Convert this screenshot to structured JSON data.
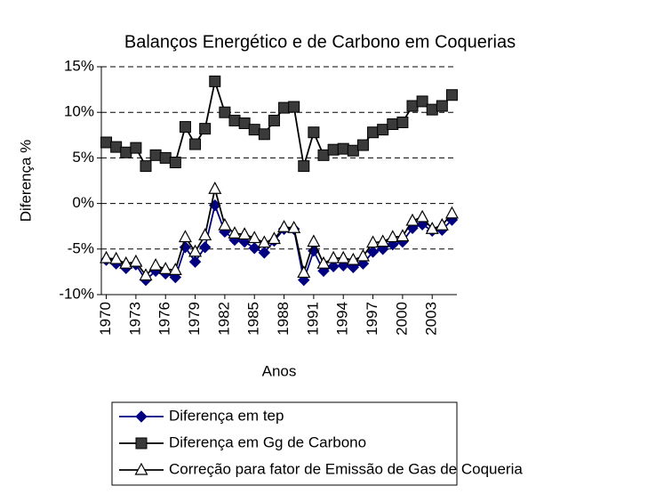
{
  "chart_data": {
    "type": "line",
    "title": "Balanços Energético e de Carbono em Coquerias",
    "x_label": "Anos",
    "y_label": "Diferença %",
    "x": [
      1970,
      1971,
      1972,
      1973,
      1974,
      1975,
      1976,
      1977,
      1978,
      1979,
      1980,
      1981,
      1982,
      1983,
      1984,
      1985,
      1986,
      1987,
      1988,
      1989,
      1990,
      1991,
      1992,
      1993,
      1994,
      1995,
      1996,
      1997,
      1998,
      1999,
      2000,
      2001,
      2002,
      2003,
      2004,
      2005
    ],
    "xlim": [
      1969.5,
      2005.5
    ],
    "xticks": [
      1970,
      1973,
      1976,
      1979,
      1982,
      1985,
      1988,
      1991,
      1994,
      1997,
      2000,
      2003
    ],
    "ylim": [
      -10,
      15
    ],
    "yticks": [
      {
        "value": -10,
        "label": "-10%"
      },
      {
        "value": -5,
        "label": "-5%"
      },
      {
        "value": 0,
        "label": "0%"
      },
      {
        "value": 5,
        "label": "5%"
      },
      {
        "value": 10,
        "label": "10%"
      },
      {
        "value": 15,
        "label": "15%"
      }
    ],
    "grid": true,
    "legend_position": "bottom",
    "series": [
      {
        "name": "Diferença em tep",
        "color": "#000080",
        "marker": "diamond",
        "values": [
          -6.2,
          -6.6,
          -7.1,
          -6.7,
          -8.4,
          -7.4,
          -7.7,
          -8.1,
          -4.8,
          -6.4,
          -4.8,
          -0.2,
          -3.1,
          -4.0,
          -4.2,
          -4.9,
          -5.4,
          -4.1,
          -2.8,
          -2.8,
          -8.4,
          -5.2,
          -7.4,
          -6.9,
          -6.8,
          -7.0,
          -6.6,
          -5.3,
          -5.0,
          -4.5,
          -4.2,
          -2.7,
          -2.3,
          -3.0,
          -2.9,
          -1.8
        ]
      },
      {
        "name": "Diferença em Gg de Carbono",
        "color": "#000000",
        "marker": "square",
        "values": [
          6.7,
          6.2,
          5.6,
          6.1,
          4.1,
          5.3,
          5.0,
          4.5,
          8.4,
          6.5,
          8.2,
          13.4,
          10.0,
          9.1,
          8.8,
          8.1,
          7.6,
          9.1,
          10.5,
          10.6,
          4.1,
          7.8,
          5.3,
          5.9,
          6.0,
          5.8,
          6.4,
          7.8,
          8.1,
          8.7,
          8.9,
          10.7,
          11.2,
          10.3,
          10.7,
          11.9
        ]
      },
      {
        "name": "Correção para fator de Emissão de Gas de Coqueria",
        "color": "#000000",
        "marker": "triangle",
        "values": [
          -6.0,
          -6.1,
          -6.6,
          -6.4,
          -7.9,
          -6.8,
          -7.2,
          -7.3,
          -3.7,
          -5.3,
          -3.5,
          1.6,
          -2.4,
          -3.3,
          -3.4,
          -3.8,
          -4.3,
          -3.9,
          -2.6,
          -2.7,
          -7.6,
          -4.2,
          -6.6,
          -6.0,
          -6.0,
          -6.2,
          -5.8,
          -4.3,
          -4.2,
          -3.7,
          -3.6,
          -1.9,
          -1.5,
          -2.8,
          -2.4,
          -1.1
        ]
      }
    ]
  }
}
